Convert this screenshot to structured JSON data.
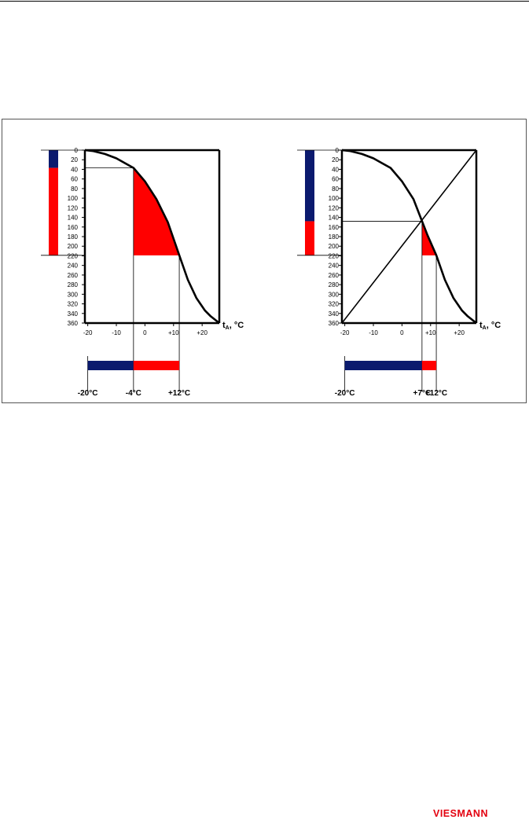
{
  "colors": {
    "cold_bar": "#0b1a6e",
    "warm_fill": "#ff0000",
    "logo": "#e3000f",
    "lines": "#000000"
  },
  "logo": {
    "text": "VIESMANN"
  },
  "chart_data": [
    {
      "type": "line",
      "y_ticks": [
        "0",
        "20",
        "40",
        "60",
        "80",
        "100",
        "120",
        "140",
        "160",
        "180",
        "200",
        "220",
        "240",
        "260",
        "280",
        "300",
        "320",
        "340",
        "360"
      ],
      "x_ticks": [
        "-20",
        "-10",
        "0",
        "+10",
        "+20"
      ],
      "x_unit_label": "t_A, °C",
      "xlim": [
        -21,
        26
      ],
      "ylim": [
        0,
        360
      ],
      "curve": {
        "x": [
          -21,
          -18,
          -14,
          -10,
          -7,
          -4,
          0,
          4,
          8,
          12,
          15,
          18,
          21,
          23,
          26
        ],
        "y": [
          0,
          2,
          8,
          17,
          27,
          37,
          65,
          102,
          150,
          219,
          270,
          308,
          334,
          346,
          360
        ]
      },
      "bivalence_x": -4,
      "cutoff_x": 12,
      "bivalence_y": 37,
      "cutoff_y": 219,
      "range_labels": [
        "-20°C",
        "-4°C",
        "+12°C"
      ],
      "diagonal": false
    },
    {
      "type": "line",
      "y_ticks": [
        "0",
        "20",
        "40",
        "60",
        "80",
        "100",
        "120",
        "140",
        "160",
        "180",
        "200",
        "220",
        "240",
        "260",
        "280",
        "300",
        "320",
        "340",
        "360"
      ],
      "x_ticks": [
        "-20",
        "-10",
        "0",
        "+10",
        "+20"
      ],
      "x_unit_label": "t_A, °C",
      "xlim": [
        -21,
        26
      ],
      "ylim": [
        0,
        360
      ],
      "curve": {
        "x": [
          -21,
          -18,
          -14,
          -10,
          -7,
          -4,
          0,
          4,
          7,
          9,
          12,
          15,
          18,
          21,
          23,
          26
        ],
        "y": [
          0,
          2,
          8,
          17,
          27,
          37,
          65,
          102,
          148,
          178,
          219,
          270,
          308,
          334,
          346,
          360
        ]
      },
      "bivalence_x": 7,
      "cutoff_x": 12,
      "bivalence_y": 148,
      "cutoff_y": 219,
      "range_labels": [
        "-20°C",
        "+7°C",
        "+12°C"
      ],
      "diagonal": true
    }
  ]
}
